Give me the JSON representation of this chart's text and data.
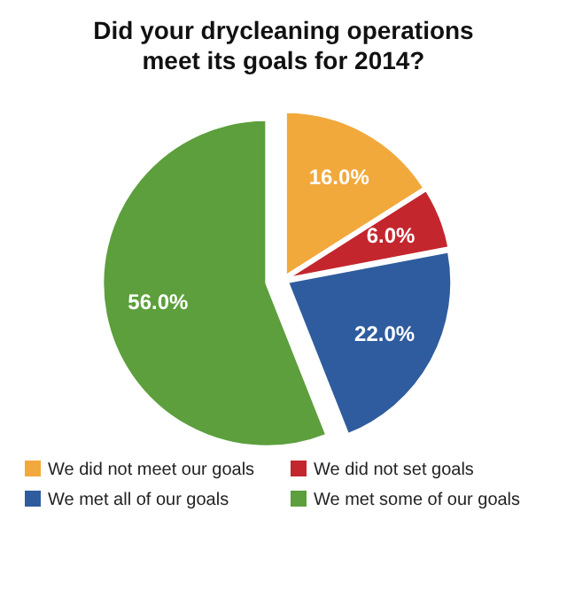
{
  "chart_data": {
    "type": "pie",
    "title": "Did your drycleaning operations meet its goals for 2014?",
    "categories": [
      "We did not meet our goals",
      "We did not set goals",
      "We met all of our goals",
      "We met some of our goals"
    ],
    "values": [
      16,
      6,
      22,
      56
    ],
    "colors": [
      "#f2a93b",
      "#c4262e",
      "#2f5c9e",
      "#5c9f3c"
    ],
    "value_labels": [
      "16.0%",
      "6.0%",
      "22.0%",
      "56.0%"
    ],
    "legend": "bottom"
  }
}
